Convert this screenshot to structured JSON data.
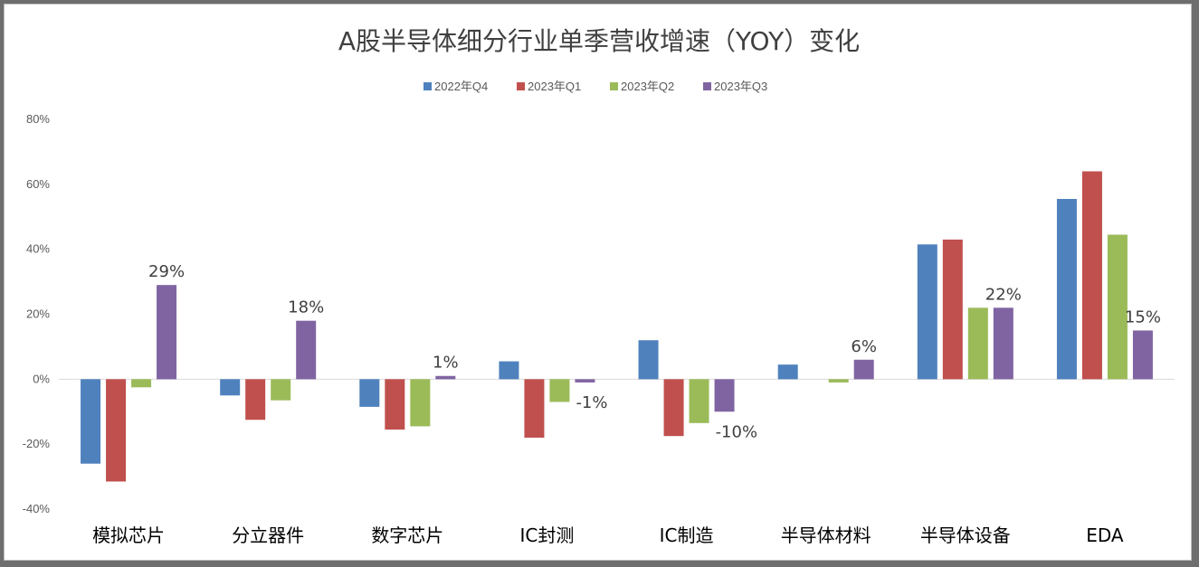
{
  "chart_data": {
    "type": "bar",
    "title": "A股半导体细分行业单季营收增速（YOY）变化",
    "categories": [
      "模拟芯片",
      "分立器件",
      "数字芯片",
      "IC封测",
      "IC制造",
      "半导体材料",
      "半导体设备",
      "EDA"
    ],
    "series": [
      {
        "name": "2022年Q4",
        "color": "#4f81bd",
        "values": [
          -26,
          -5,
          -8.5,
          5.5,
          12,
          4.5,
          41.5,
          55.5
        ]
      },
      {
        "name": "2023年Q1",
        "color": "#c0504d",
        "values": [
          -31.5,
          -12.5,
          -15.5,
          -18,
          -17.5,
          0,
          43,
          64
        ]
      },
      {
        "name": "2023年Q2",
        "color": "#9bbb59",
        "values": [
          -2.5,
          -6.5,
          -14.5,
          -7,
          -13.5,
          -1,
          22,
          44.5
        ]
      },
      {
        "name": "2023年Q3",
        "color": "#8064a2",
        "values": [
          29,
          18,
          1,
          -1,
          -10,
          6,
          22,
          15
        ]
      }
    ],
    "data_labels": {
      "series": "2023年Q3",
      "texts": [
        "29%",
        "18%",
        "1%",
        "-1%",
        "-10%",
        "6%",
        "22%",
        "15%"
      ]
    },
    "ylim": [
      -40,
      80
    ],
    "yticks": [
      -40,
      -20,
      0,
      20,
      40,
      60,
      80
    ],
    "ytick_labels": [
      "-40%",
      "-20%",
      "0%",
      "20%",
      "40%",
      "60%",
      "80%"
    ],
    "xlabel": "",
    "ylabel": "",
    "legend_position": "top",
    "grid": false
  }
}
